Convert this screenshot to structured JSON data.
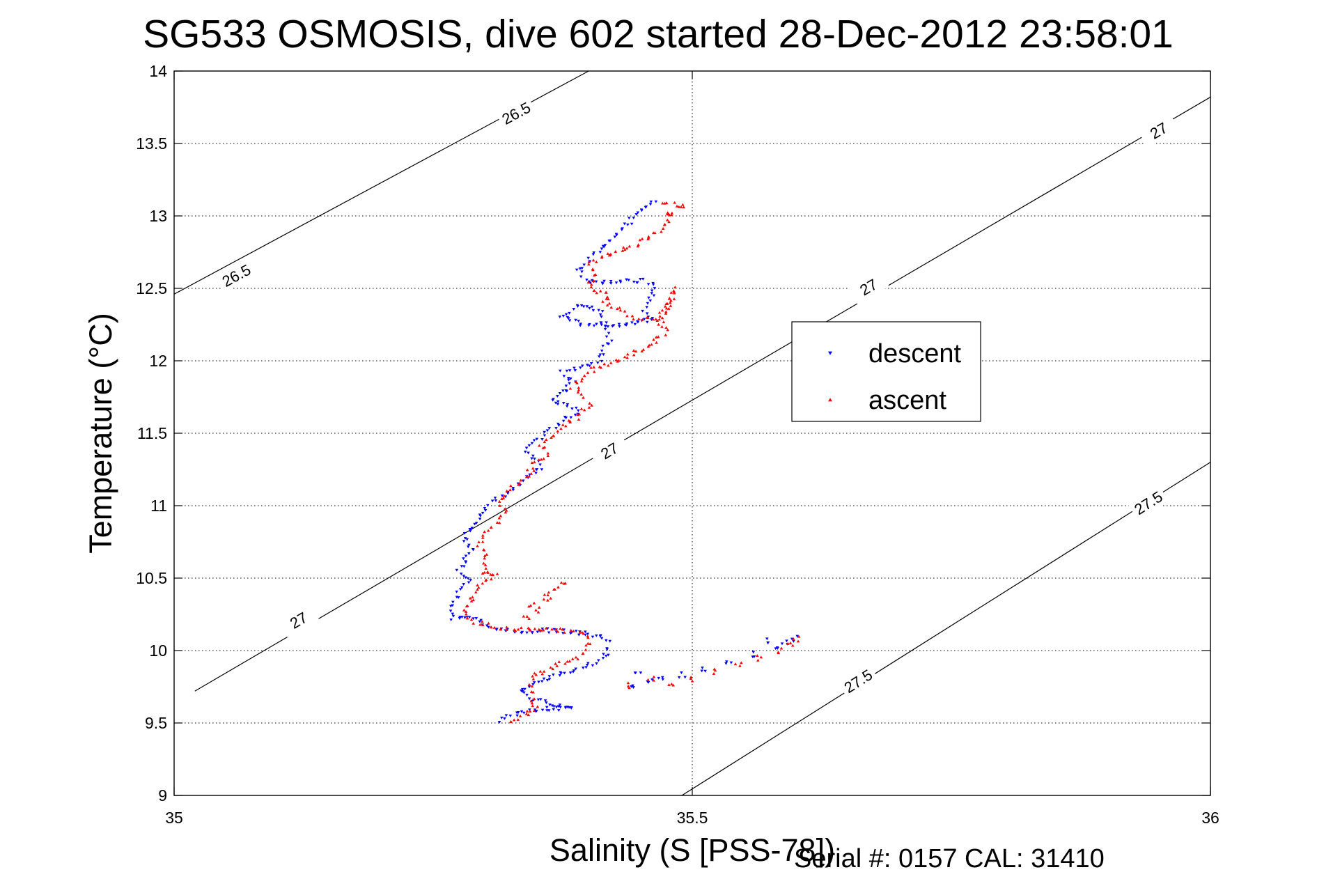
{
  "chart_data": {
    "type": "scatter",
    "title": "SG533 OSMOSIS, dive 602 started 28-Dec-2012 23:58:01",
    "xlabel": "Salinity (S [PSS-78])",
    "ylabel": "Temperature (°C)",
    "xlim": [
      35,
      36
    ],
    "ylim": [
      9,
      14
    ],
    "x_ticks": [
      "35",
      "35.5",
      "36"
    ],
    "y_ticks": [
      "9",
      "9.5",
      "10",
      "10.5",
      "11",
      "11.5",
      "12",
      "12.5",
      "13",
      "13.5",
      "14"
    ],
    "grid": true,
    "legend_placement": "center-right",
    "series": [
      {
        "name": "descent",
        "marker": "triangle-down",
        "color": "#0000ff",
        "path": [
          [
            35.465,
            13.1
          ],
          [
            35.455,
            13.06
          ],
          [
            35.445,
            13.0
          ],
          [
            35.435,
            12.93
          ],
          [
            35.425,
            12.85
          ],
          [
            35.412,
            12.77
          ],
          [
            35.4,
            12.69
          ],
          [
            35.39,
            12.62
          ],
          [
            35.4,
            12.54
          ],
          [
            35.43,
            12.55
          ],
          [
            35.455,
            12.55
          ],
          [
            35.465,
            12.5
          ],
          [
            35.46,
            12.42
          ],
          [
            35.455,
            12.35
          ],
          [
            35.462,
            12.28
          ],
          [
            35.43,
            12.25
          ],
          [
            35.395,
            12.25
          ],
          [
            35.375,
            12.3
          ],
          [
            35.39,
            12.38
          ],
          [
            35.41,
            12.35
          ],
          [
            35.42,
            12.15
          ],
          [
            35.41,
            12.0
          ],
          [
            35.395,
            11.96
          ],
          [
            35.385,
            11.94
          ],
          [
            35.375,
            11.92
          ],
          [
            35.385,
            11.85
          ],
          [
            35.375,
            11.78
          ],
          [
            35.365,
            11.72
          ],
          [
            35.39,
            11.66
          ],
          [
            35.375,
            11.58
          ],
          [
            35.36,
            11.5
          ],
          [
            35.35,
            11.44
          ],
          [
            35.34,
            11.38
          ],
          [
            35.35,
            11.3
          ],
          [
            35.355,
            11.26
          ],
          [
            35.345,
            11.22
          ],
          [
            35.34,
            11.18
          ],
          [
            35.33,
            11.12
          ],
          [
            35.32,
            11.08
          ],
          [
            35.305,
            11.03
          ],
          [
            35.3,
            10.97
          ],
          [
            35.295,
            10.9
          ],
          [
            35.285,
            10.83
          ],
          [
            35.28,
            10.76
          ],
          [
            35.29,
            10.7
          ],
          [
            35.28,
            10.62
          ],
          [
            35.275,
            10.55
          ],
          [
            35.285,
            10.48
          ],
          [
            35.275,
            10.42
          ],
          [
            35.27,
            10.34
          ],
          [
            35.265,
            10.28
          ],
          [
            35.27,
            10.22
          ],
          [
            35.29,
            10.22
          ],
          [
            35.3,
            10.18
          ],
          [
            35.315,
            10.14
          ],
          [
            35.34,
            10.13
          ],
          [
            35.365,
            10.14
          ],
          [
            35.39,
            10.12
          ],
          [
            35.41,
            10.1
          ],
          [
            35.42,
            10.05
          ],
          [
            35.418,
            9.98
          ],
          [
            35.41,
            9.92
          ],
          [
            35.39,
            9.88
          ],
          [
            35.37,
            9.83
          ],
          [
            35.35,
            9.78
          ],
          [
            35.333,
            9.72
          ],
          [
            35.348,
            9.66
          ],
          [
            35.365,
            9.62
          ],
          [
            35.385,
            9.6
          ],
          [
            35.36,
            9.6
          ],
          [
            35.34,
            9.58
          ],
          [
            35.325,
            9.55
          ],
          [
            35.31,
            9.51
          ]
        ],
        "extra": [
          [
            35.448,
            9.85
          ],
          [
            35.47,
            9.8
          ],
          [
            35.49,
            9.83
          ],
          [
            35.51,
            9.87
          ],
          [
            35.535,
            9.92
          ],
          [
            35.56,
            9.97
          ],
          [
            35.58,
            10.03
          ],
          [
            35.598,
            10.08
          ],
          [
            35.59,
            10.05
          ],
          [
            35.575,
            10.07
          ],
          [
            35.46,
            9.78
          ],
          [
            35.44,
            9.74
          ]
        ]
      },
      {
        "name": "ascent",
        "marker": "triangle-up",
        "color": "#ff0000",
        "path": [
          [
            35.47,
            13.1
          ],
          [
            35.48,
            13.09
          ],
          [
            35.485,
            13.05
          ],
          [
            35.478,
            12.98
          ],
          [
            35.47,
            12.92
          ],
          [
            35.46,
            12.86
          ],
          [
            35.445,
            12.8
          ],
          [
            35.43,
            12.75
          ],
          [
            35.41,
            12.72
          ],
          [
            35.4,
            12.66
          ],
          [
            35.405,
            12.6
          ],
          [
            35.4,
            12.5
          ],
          [
            35.42,
            12.45
          ],
          [
            35.415,
            12.4
          ],
          [
            35.43,
            12.35
          ],
          [
            35.445,
            12.3
          ],
          [
            35.465,
            12.28
          ],
          [
            35.475,
            12.35
          ],
          [
            35.48,
            12.42
          ],
          [
            35.483,
            12.5
          ],
          [
            35.475,
            12.4
          ],
          [
            35.47,
            12.26
          ],
          [
            35.475,
            12.2
          ],
          [
            35.465,
            12.14
          ],
          [
            35.45,
            12.08
          ],
          [
            35.435,
            12.02
          ],
          [
            35.42,
            11.98
          ],
          [
            35.405,
            11.94
          ],
          [
            35.395,
            11.88
          ],
          [
            35.385,
            11.82
          ],
          [
            35.395,
            11.76
          ],
          [
            35.4,
            11.7
          ],
          [
            35.39,
            11.62
          ],
          [
            35.378,
            11.55
          ],
          [
            35.365,
            11.48
          ],
          [
            35.355,
            11.42
          ],
          [
            35.36,
            11.35
          ],
          [
            35.35,
            11.3
          ],
          [
            35.34,
            11.2
          ],
          [
            35.33,
            11.14
          ],
          [
            35.32,
            11.08
          ],
          [
            35.315,
            11.02
          ],
          [
            35.32,
            10.96
          ],
          [
            35.31,
            10.88
          ],
          [
            35.3,
            10.8
          ],
          [
            35.295,
            10.72
          ],
          [
            35.3,
            10.65
          ],
          [
            35.3,
            10.58
          ],
          [
            35.305,
            10.52
          ],
          [
            35.295,
            10.45
          ],
          [
            35.29,
            10.38
          ],
          [
            35.28,
            10.3
          ],
          [
            35.282,
            10.22
          ],
          [
            35.3,
            10.18
          ],
          [
            35.32,
            10.15
          ],
          [
            35.345,
            10.14
          ],
          [
            35.37,
            10.14
          ],
          [
            35.395,
            10.12
          ],
          [
            35.4,
            10.04
          ],
          [
            35.39,
            9.96
          ],
          [
            35.37,
            9.9
          ],
          [
            35.345,
            9.82
          ],
          [
            35.345,
            9.75
          ],
          [
            35.345,
            9.68
          ],
          [
            35.35,
            9.6
          ],
          [
            35.335,
            9.54
          ],
          [
            35.32,
            9.5
          ]
        ],
        "extra": [
          [
            35.34,
            10.22
          ],
          [
            35.35,
            10.28
          ],
          [
            35.36,
            10.35
          ],
          [
            35.368,
            10.42
          ],
          [
            35.375,
            10.48
          ],
          [
            35.36,
            10.4
          ],
          [
            35.345,
            10.32
          ],
          [
            35.3,
            10.55
          ],
          [
            35.31,
            10.52
          ],
          [
            35.44,
            9.76
          ],
          [
            35.46,
            9.8
          ],
          [
            35.48,
            9.78
          ],
          [
            35.5,
            9.8
          ],
          [
            35.52,
            9.86
          ],
          [
            35.545,
            9.9
          ],
          [
            35.565,
            9.95
          ],
          [
            35.585,
            10.0
          ],
          [
            35.595,
            10.04
          ],
          [
            35.6,
            10.08
          ],
          [
            35.49,
            13.07
          ],
          [
            35.478,
            13.02
          ]
        ]
      }
    ],
    "contours": [
      {
        "label": "26.5",
        "points": [
          [
            35.0,
            12.46
          ],
          [
            35.4,
            14.0
          ]
        ],
        "label_at": [
          [
            35.06,
            12.59
          ],
          [
            35.33,
            13.71
          ]
        ]
      },
      {
        "label": "27",
        "points": [
          [
            35.02,
            9.72
          ],
          [
            36.0,
            13.82
          ]
        ],
        "label_at": [
          [
            35.12,
            10.21
          ],
          [
            35.42,
            11.38
          ],
          [
            35.67,
            12.51
          ],
          [
            35.95,
            13.59
          ]
        ]
      },
      {
        "label": "27.5",
        "points": [
          [
            35.49,
            9.0
          ],
          [
            36.0,
            11.3
          ]
        ],
        "label_at": [
          [
            35.66,
            9.79
          ],
          [
            35.94,
            11.02
          ]
        ]
      }
    ]
  },
  "footer": {
    "serial_label": "Serial #: 0157  CAL: 31410"
  }
}
